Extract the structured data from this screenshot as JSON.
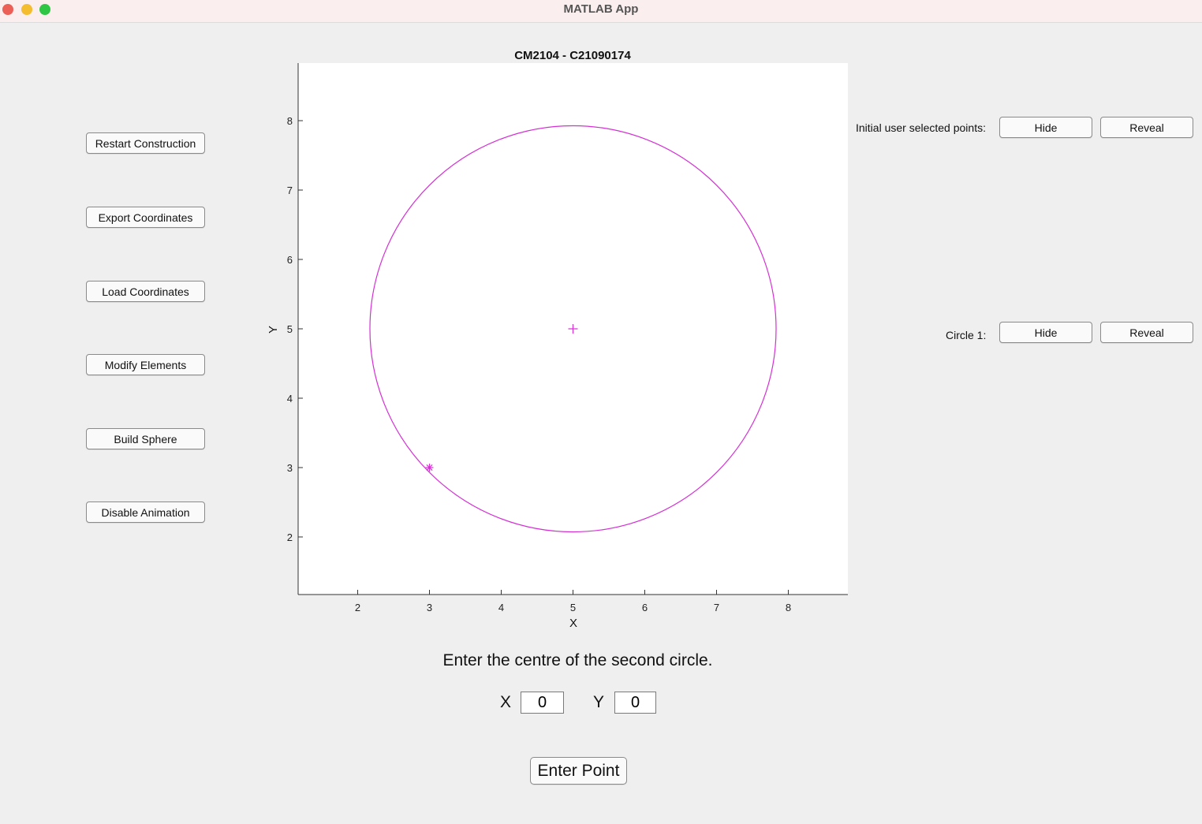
{
  "window": {
    "title": "MATLAB App"
  },
  "sidebar": {
    "buttons": [
      {
        "label": "Restart Construction"
      },
      {
        "label": "Export Coordinates"
      },
      {
        "label": "Load Coordinates"
      },
      {
        "label": "Modify Elements"
      },
      {
        "label": "Build Sphere"
      },
      {
        "label": "Disable Animation"
      }
    ]
  },
  "chart_data": {
    "type": "scatter",
    "title": "CM2104 - C21090174",
    "xlabel": "X",
    "ylabel": "Y",
    "xlim": [
      1.17,
      8.83
    ],
    "ylim": [
      1.17,
      8.83
    ],
    "xticks": [
      2,
      3,
      4,
      5,
      6,
      7,
      8
    ],
    "yticks": [
      2,
      3,
      4,
      5,
      6,
      7,
      8
    ],
    "grid": false,
    "color": "#d430d4",
    "circle": {
      "cx": 5,
      "cy": 5,
      "r": 2.83
    },
    "center_point": {
      "x": 5,
      "y": 5,
      "marker": "plus"
    },
    "selected_point": {
      "x": 3,
      "y": 3,
      "marker": "asterisk"
    }
  },
  "visibility": {
    "initial_points": {
      "label": "Initial user selected points:",
      "hide": "Hide",
      "reveal": "Reveal"
    },
    "circle1": {
      "label": "Circle 1:",
      "hide": "Hide",
      "reveal": "Reveal"
    }
  },
  "input": {
    "prompt": "Enter the centre of the second circle.",
    "x_label": "X",
    "x_value": "0",
    "y_label": "Y",
    "y_value": "0",
    "enter_label": "Enter Point"
  }
}
